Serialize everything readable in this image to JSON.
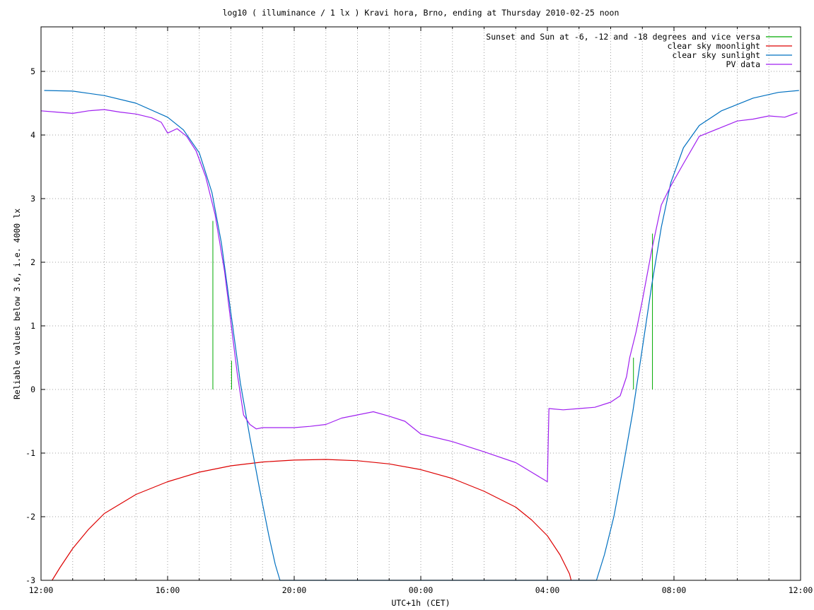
{
  "chart_data": {
    "type": "line",
    "title": "log10 ( illuminance / 1 lx ) Kravi hora, Brno, ending at Thursday 2010-02-25 noon",
    "xlabel": "UTC+1h (CET)",
    "ylabel": "Reliable values below 3.6, i.e. 4000 lx",
    "xlim": [
      0,
      24
    ],
    "ylim": [
      -3,
      5.7
    ],
    "x_ticks": [
      {
        "x": 0,
        "label": "12:00"
      },
      {
        "x": 4,
        "label": "16:00"
      },
      {
        "x": 8,
        "label": "20:00"
      },
      {
        "x": 12,
        "label": "00:00"
      },
      {
        "x": 16,
        "label": "04:00"
      },
      {
        "x": 20,
        "label": "08:00"
      },
      {
        "x": 24,
        "label": "12:00"
      }
    ],
    "y_ticks": [
      {
        "y": -3,
        "label": "-3"
      },
      {
        "y": -2,
        "label": "-2"
      },
      {
        "y": -1,
        "label": "-1"
      },
      {
        "y": 0,
        "label": "0"
      },
      {
        "y": 1,
        "label": "1"
      },
      {
        "y": 2,
        "label": "2"
      },
      {
        "y": 3,
        "label": "3"
      },
      {
        "y": 4,
        "label": "4"
      },
      {
        "y": 5,
        "label": "5"
      }
    ],
    "grid": true,
    "minor_x_step": 1,
    "legend_position": "top-right",
    "series": [
      {
        "name": "Sunset and Sun at -6, -12 and -18 degrees and vice versa",
        "color": "#00aa00",
        "kind": "impulses",
        "points": [
          {
            "x": 5.43,
            "y": 2.65
          },
          {
            "x": 6.02,
            "y": 0.45
          },
          {
            "x": 6.58,
            "y": 0
          },
          {
            "x": 7.2,
            "y": 0
          },
          {
            "x": 17.5,
            "y": 0
          },
          {
            "x": 18.12,
            "y": 0
          },
          {
            "x": 18.72,
            "y": 0.5
          },
          {
            "x": 19.32,
            "y": 2.45
          }
        ]
      },
      {
        "name": "clear sky moonlight",
        "color": "#dd0000",
        "kind": "line",
        "points": [
          [
            0.35,
            -3.0
          ],
          [
            0.6,
            -2.8
          ],
          [
            1.0,
            -2.5
          ],
          [
            1.5,
            -2.2
          ],
          [
            2.0,
            -1.95
          ],
          [
            3.0,
            -1.65
          ],
          [
            4.0,
            -1.45
          ],
          [
            5.0,
            -1.3
          ],
          [
            6.0,
            -1.2
          ],
          [
            7.0,
            -1.14
          ],
          [
            8.0,
            -1.11
          ],
          [
            9.0,
            -1.1
          ],
          [
            10.0,
            -1.12
          ],
          [
            11.0,
            -1.17
          ],
          [
            12.0,
            -1.26
          ],
          [
            13.0,
            -1.4
          ],
          [
            14.0,
            -1.6
          ],
          [
            15.0,
            -1.85
          ],
          [
            15.5,
            -2.05
          ],
          [
            16.0,
            -2.3
          ],
          [
            16.4,
            -2.6
          ],
          [
            16.7,
            -2.9
          ],
          [
            16.75,
            -3.0
          ]
        ]
      },
      {
        "name": "clear sky sunlight",
        "color": "#0070c0",
        "kind": "line",
        "points": [
          [
            0.1,
            4.7
          ],
          [
            1.0,
            4.69
          ],
          [
            2.0,
            4.62
          ],
          [
            3.0,
            4.5
          ],
          [
            4.0,
            4.28
          ],
          [
            4.5,
            4.08
          ],
          [
            5.0,
            3.72
          ],
          [
            5.4,
            3.1
          ],
          [
            5.7,
            2.3
          ],
          [
            6.0,
            1.2
          ],
          [
            6.3,
            0.1
          ],
          [
            6.6,
            -0.75
          ],
          [
            6.9,
            -1.55
          ],
          [
            7.2,
            -2.3
          ],
          [
            7.4,
            -2.75
          ],
          [
            7.55,
            -3.0
          ],
          [
            17.55,
            -3.0
          ],
          [
            17.8,
            -2.6
          ],
          [
            18.1,
            -2.0
          ],
          [
            18.4,
            -1.2
          ],
          [
            18.7,
            -0.35
          ],
          [
            19.0,
            0.65
          ],
          [
            19.3,
            1.65
          ],
          [
            19.6,
            2.55
          ],
          [
            19.9,
            3.25
          ],
          [
            20.3,
            3.8
          ],
          [
            20.8,
            4.15
          ],
          [
            21.5,
            4.38
          ],
          [
            22.5,
            4.58
          ],
          [
            23.3,
            4.67
          ],
          [
            23.95,
            4.7
          ]
        ]
      },
      {
        "name": "PV data",
        "color": "#a020f0",
        "kind": "line",
        "points": [
          [
            0.0,
            4.38
          ],
          [
            0.5,
            4.36
          ],
          [
            1.0,
            4.34
          ],
          [
            1.5,
            4.38
          ],
          [
            2.0,
            4.4
          ],
          [
            2.5,
            4.36
          ],
          [
            3.0,
            4.33
          ],
          [
            3.5,
            4.27
          ],
          [
            3.8,
            4.2
          ],
          [
            4.0,
            4.03
          ],
          [
            4.3,
            4.1
          ],
          [
            4.6,
            3.98
          ],
          [
            4.9,
            3.75
          ],
          [
            5.2,
            3.35
          ],
          [
            5.5,
            2.75
          ],
          [
            5.8,
            1.85
          ],
          [
            6.0,
            1.05
          ],
          [
            6.2,
            0.25
          ],
          [
            6.4,
            -0.4
          ],
          [
            6.6,
            -0.55
          ],
          [
            6.8,
            -0.62
          ],
          [
            7.0,
            -0.6
          ],
          [
            7.5,
            -0.6
          ],
          [
            8.0,
            -0.6
          ],
          [
            8.5,
            -0.58
          ],
          [
            9.0,
            -0.55
          ],
          [
            9.5,
            -0.45
          ],
          [
            10.0,
            -0.4
          ],
          [
            10.5,
            -0.35
          ],
          [
            11.0,
            -0.42
          ],
          [
            11.5,
            -0.5
          ],
          [
            12.0,
            -0.7
          ],
          [
            13.0,
            -0.82
          ],
          [
            14.0,
            -0.98
          ],
          [
            15.0,
            -1.15
          ],
          [
            15.5,
            -1.3
          ],
          [
            16.0,
            -1.45
          ],
          [
            16.05,
            -0.3
          ],
          [
            16.5,
            -0.32
          ],
          [
            17.0,
            -0.3
          ],
          [
            17.5,
            -0.28
          ],
          [
            18.0,
            -0.2
          ],
          [
            18.3,
            -0.1
          ],
          [
            18.5,
            0.2
          ],
          [
            18.6,
            0.5
          ],
          [
            18.8,
            0.9
          ],
          [
            19.0,
            1.4
          ],
          [
            19.3,
            2.2
          ],
          [
            19.6,
            2.9
          ],
          [
            19.9,
            3.2
          ],
          [
            20.3,
            3.55
          ],
          [
            20.8,
            3.98
          ],
          [
            21.5,
            4.12
          ],
          [
            22.0,
            4.22
          ],
          [
            22.5,
            4.25
          ],
          [
            23.0,
            4.3
          ],
          [
            23.5,
            4.28
          ],
          [
            23.9,
            4.35
          ]
        ]
      }
    ]
  }
}
